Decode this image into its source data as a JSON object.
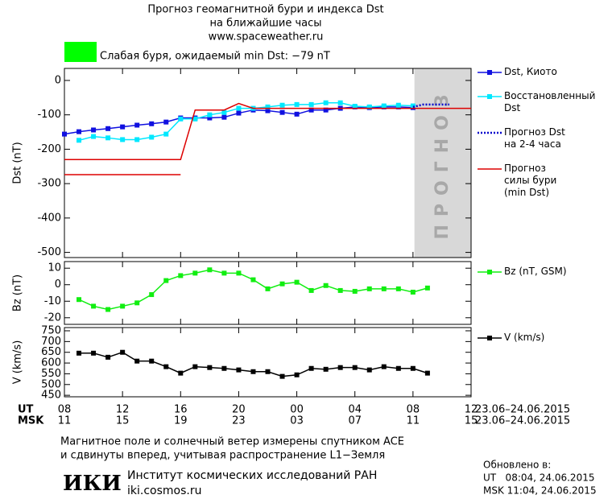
{
  "header": {
    "title": "Прогноз геомагнитной бури и индекса Dst",
    "subtitle": "на ближайшие часы",
    "url": "www.spaceweather.ru"
  },
  "status": {
    "text": "Слабая буря, ожидаемый min Dst: −79 nT",
    "color": "#00ff00"
  },
  "chart_data": [
    {
      "type": "line",
      "y_label": "Dst (nT)",
      "xlim": [
        0,
        28
      ],
      "ylim": [
        -515,
        35
      ],
      "yticks": [
        0,
        -100,
        -200,
        -300,
        -400,
        -500
      ],
      "xticks": [
        0,
        4,
        8,
        12,
        16,
        20,
        24,
        28
      ],
      "forecast_band": {
        "label": "ПРОГНОЗ",
        "x": [
          24.1,
          28
        ],
        "color": "#d8d8d8"
      },
      "series": [
        {
          "name": "Dst, Киото",
          "color": "#1010e0",
          "marker": "square",
          "x": [
            0,
            1,
            2,
            3,
            4,
            5,
            6,
            7,
            8,
            9,
            10,
            11,
            12,
            13,
            14,
            15,
            16,
            17,
            18,
            19,
            20,
            21,
            22,
            23,
            24
          ],
          "values": [
            -156,
            -149,
            -144,
            -140,
            -135,
            -130,
            -126,
            -121,
            -109,
            -109,
            -109,
            -107,
            -95,
            -86,
            -88,
            -93,
            -98,
            -86,
            -86,
            -81,
            -77,
            -79,
            -77,
            -77,
            -79
          ]
        },
        {
          "name": "Восстановленный\nDst",
          "color": "#00e8ff",
          "marker": "square",
          "x": [
            1,
            2,
            3,
            4,
            5,
            6,
            7,
            8,
            9,
            10,
            11,
            12,
            13,
            14,
            15,
            16,
            17,
            18,
            19,
            20,
            21,
            22,
            23,
            24
          ],
          "values": [
            -174,
            -163,
            -167,
            -172,
            -172,
            -165,
            -156,
            -112,
            -112,
            -100,
            -93,
            -81,
            -81,
            -77,
            -72,
            -70,
            -70,
            -65,
            -65,
            -75,
            -77,
            -74,
            -72,
            -74
          ]
        },
        {
          "name": "Прогноз Dst\nна 2-4 часа",
          "color": "#0000cc",
          "dash": "dotted",
          "x": [
            24,
            24.7,
            26.5
          ],
          "values": [
            -77,
            -70,
            -70
          ]
        },
        {
          "name": "Прогноз\nсилы бури\n(min Dst)",
          "color": "#dd0000",
          "x": [
            0,
            8,
            9,
            11,
            12,
            13,
            28,
            null,
            0,
            8
          ],
          "values": [
            -230,
            -230,
            -86,
            -86,
            -67,
            -81,
            -81,
            null,
            -274,
            -274
          ]
        }
      ]
    },
    {
      "type": "line",
      "y_label": "Bz (nT)",
      "xlim": [
        0,
        28
      ],
      "ylim": [
        -24,
        14
      ],
      "yticks": [
        10,
        0,
        -10,
        -20
      ],
      "xticks": [
        0,
        4,
        8,
        12,
        16,
        20,
        24,
        28
      ],
      "series": [
        {
          "name": "Bz (nT, GSM)",
          "color": "#11ee11",
          "marker": "square",
          "x": [
            1,
            2,
            3,
            4,
            5,
            6,
            7,
            8,
            9,
            10,
            11,
            12,
            13,
            14,
            15,
            16,
            17,
            18,
            19,
            20,
            21,
            22,
            23,
            24,
            25
          ],
          "values": [
            -9,
            -13,
            -15,
            -13,
            -11,
            -6,
            2.5,
            5.5,
            7,
            9,
            7,
            7,
            3,
            -2.5,
            0.5,
            1.5,
            -3.5,
            -0.5,
            -3.5,
            -4,
            -2.5,
            -2.5,
            -2.5,
            -4.5,
            -2
          ]
        }
      ]
    },
    {
      "type": "line",
      "y_label": "V (km/s)",
      "xlim": [
        0,
        28
      ],
      "ylim": [
        443,
        765
      ],
      "yticks": [
        750,
        700,
        650,
        600,
        550,
        500,
        450
      ],
      "x_label": "UT",
      "x2_label": "MSK",
      "date_range": "23.06–24.06.2015",
      "xticks": [
        {
          "value": 0,
          "label": "08"
        },
        {
          "value": 4,
          "label": "12"
        },
        {
          "value": 8,
          "label": "16"
        },
        {
          "value": 12,
          "label": "20"
        },
        {
          "value": 16,
          "label": "00"
        },
        {
          "value": 20,
          "label": "04"
        },
        {
          "value": 24,
          "label": "08"
        },
        {
          "value": 28,
          "label": "12"
        }
      ],
      "x2ticks": [
        {
          "value": 0,
          "label": "11"
        },
        {
          "value": 4,
          "label": "15"
        },
        {
          "value": 8,
          "label": "19"
        },
        {
          "value": 12,
          "label": "23"
        },
        {
          "value": 16,
          "label": "03"
        },
        {
          "value": 20,
          "label": "07"
        },
        {
          "value": 24,
          "label": "11"
        },
        {
          "value": 28,
          "label": "15"
        }
      ],
      "series": [
        {
          "name": "V (km/s)",
          "color": "#000000",
          "marker": "square",
          "x": [
            1,
            2,
            3,
            4,
            5,
            6,
            7,
            8,
            9,
            10,
            11,
            12,
            13,
            14,
            15,
            16,
            17,
            18,
            19,
            20,
            21,
            22,
            23,
            24,
            25
          ],
          "values": [
            646,
            646,
            627,
            650,
            609,
            609,
            583,
            553,
            583,
            579,
            575,
            568,
            560,
            560,
            538,
            545,
            575,
            571,
            579,
            579,
            568,
            583,
            575,
            575,
            553
          ]
        }
      ]
    }
  ],
  "footer": {
    "note_1": "Магнитное поле и солнечный ветер измерены спутником ACE",
    "note_2": "и сдвинуты вперед, учитывая распространение L1−Земля",
    "logo": "ИКИ",
    "institute": "Институт космических исследований РАН",
    "site": "iki.cosmos.ru",
    "updated": "Обновлено в:",
    "updated_ut": "UT   08:04, 24.06.2015",
    "updated_msk": "MSK 11:04, 24.06.2015"
  }
}
